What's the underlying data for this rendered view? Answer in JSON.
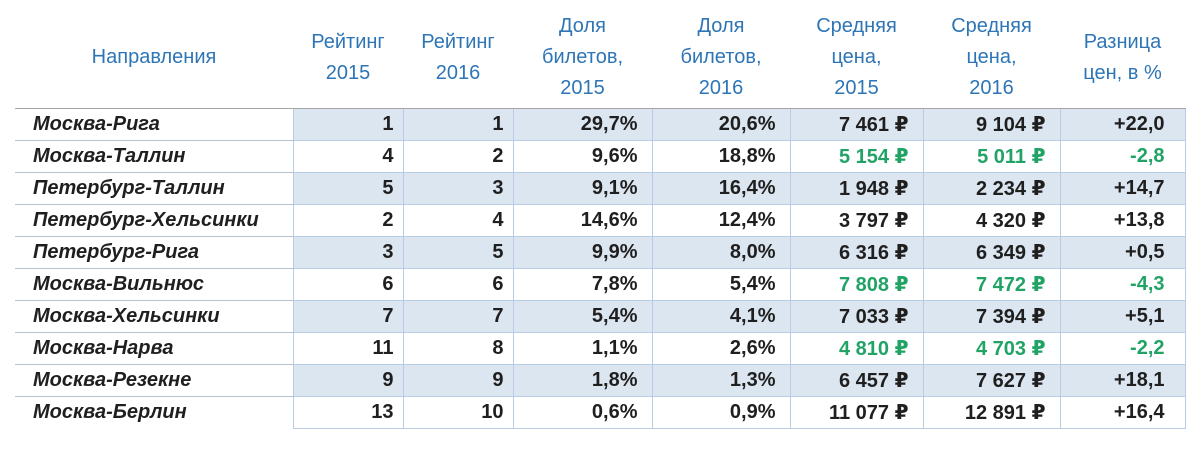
{
  "colors": {
    "header_text": "#2E75B6",
    "body_text": "#1F1F1F",
    "highlight_green": "#21A366",
    "stripe_fill": "#DCE6F1",
    "cell_border": "#B8CCE4",
    "header_border": "#A6A6A6",
    "name_row_border": "#B4C4D4"
  },
  "chart_data": {
    "type": "table",
    "title": "",
    "columns": [
      {
        "key": "name",
        "label": "Направления"
      },
      {
        "key": "rating2015",
        "label": "Рейтинг\n2015"
      },
      {
        "key": "rating2016",
        "label": "Рейтинг\n2016"
      },
      {
        "key": "share2015",
        "label": "Доля\nбилетов,\n2015"
      },
      {
        "key": "share2016",
        "label": "Доля\nбилетов,\n2016"
      },
      {
        "key": "price2015",
        "label": "Средняя\nцена,\n2015"
      },
      {
        "key": "price2016",
        "label": "Средняя\nцена,\n2016"
      },
      {
        "key": "diff",
        "label": "Разница\nцен, в %"
      }
    ],
    "rows": [
      {
        "name": "Москва-Рига",
        "rating2015": "1",
        "rating2016": "1",
        "share2015": "29,7%",
        "share2016": "20,6%",
        "price2015": "7 461 ₽",
        "price2016": "9 104 ₽",
        "diff": "+22,0",
        "price_drop": false
      },
      {
        "name": "Москва-Таллин",
        "rating2015": "4",
        "rating2016": "2",
        "share2015": "9,6%",
        "share2016": "18,8%",
        "price2015": "5 154 ₽",
        "price2016": "5 011 ₽",
        "diff": "-2,8",
        "price_drop": true
      },
      {
        "name": "Петербург-Таллин",
        "rating2015": "5",
        "rating2016": "3",
        "share2015": "9,1%",
        "share2016": "16,4%",
        "price2015": "1 948 ₽",
        "price2016": "2 234 ₽",
        "diff": "+14,7",
        "price_drop": false
      },
      {
        "name": "Петербург-Хельсинки",
        "rating2015": "2",
        "rating2016": "4",
        "share2015": "14,6%",
        "share2016": "12,4%",
        "price2015": "3 797 ₽",
        "price2016": "4 320 ₽",
        "diff": "+13,8",
        "price_drop": false
      },
      {
        "name": "Петербург-Рига",
        "rating2015": "3",
        "rating2016": "5",
        "share2015": "9,9%",
        "share2016": "8,0%",
        "price2015": "6 316 ₽",
        "price2016": "6 349 ₽",
        "diff": "+0,5",
        "price_drop": false
      },
      {
        "name": "Москва-Вильнюс",
        "rating2015": "6",
        "rating2016": "6",
        "share2015": "7,8%",
        "share2016": "5,4%",
        "price2015": "7 808 ₽",
        "price2016": "7 472 ₽",
        "diff": "-4,3",
        "price_drop": true
      },
      {
        "name": "Москва-Хельсинки",
        "rating2015": "7",
        "rating2016": "7",
        "share2015": "5,4%",
        "share2016": "4,1%",
        "price2015": "7 033 ₽",
        "price2016": "7 394 ₽",
        "diff": "+5,1",
        "price_drop": false
      },
      {
        "name": "Москва-Нарва",
        "rating2015": "11",
        "rating2016": "8",
        "share2015": "1,1%",
        "share2016": "2,6%",
        "price2015": "4 810 ₽",
        "price2016": "4 703 ₽",
        "diff": "-2,2",
        "price_drop": true
      },
      {
        "name": "Москва-Резекне",
        "rating2015": "9",
        "rating2016": "9",
        "share2015": "1,8%",
        "share2016": "1,3%",
        "price2015": "6 457 ₽",
        "price2016": "7 627 ₽",
        "diff": "+18,1",
        "price_drop": false
      },
      {
        "name": "Москва-Берлин",
        "rating2015": "13",
        "rating2016": "10",
        "share2015": "0,6%",
        "share2016": "0,9%",
        "price2015": "11 077 ₽",
        "price2016": "12 891 ₽",
        "diff": "+16,4",
        "price_drop": false
      }
    ]
  }
}
